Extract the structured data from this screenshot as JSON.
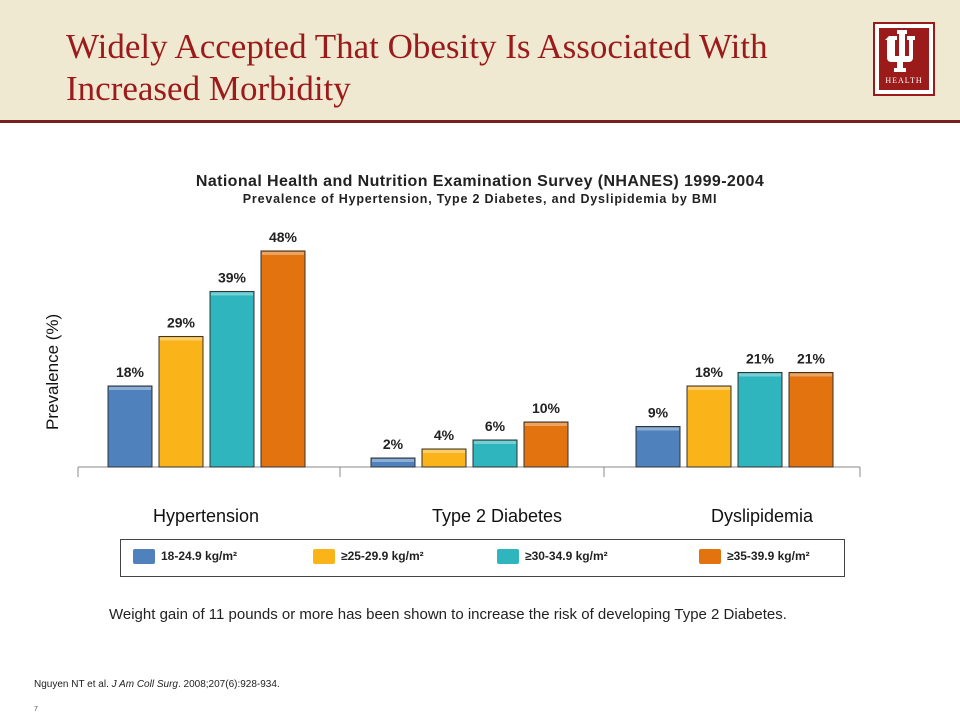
{
  "slide": {
    "title": "Widely Accepted That Obesity Is Associated With Increased Morbidity",
    "logo_text": "HEALTH",
    "note": "Weight gain of 11 pounds or more has been shown to increase the risk of developing Type 2 Diabetes.",
    "citation_authors": "Nguyen NT et al. ",
    "citation_journal": "J Am Coll Surg",
    "citation_rest": ". 2008;207(6):928-934.",
    "page_number": "7"
  },
  "chart_data": {
    "type": "bar",
    "title": "National Health and Nutrition Examination Survey (NHANES) 1999-2004",
    "subtitle": "Prevalence of Hypertension, Type 2 Diabetes, and Dyslipidemia by BMI",
    "ylabel": "Prevalence (%)",
    "categories": [
      "Hypertension",
      "Type 2 Diabetes",
      "Dyslipidemia"
    ],
    "ylim": [
      0,
      50
    ],
    "legend_position": "bottom",
    "series": [
      {
        "name": "18-24.9 kg/m²",
        "color": "#4f81bd",
        "values": [
          18,
          2,
          9
        ],
        "labels": [
          "18%",
          "2%",
          "9%"
        ]
      },
      {
        "name": "≥25-29.9 kg/m²",
        "color": "#fbb31a",
        "values": [
          29,
          4,
          18
        ],
        "labels": [
          "29%",
          "4%",
          "18%"
        ]
      },
      {
        "name": "≥30-34.9 kg/m²",
        "color": "#2fb5bd",
        "values": [
          39,
          6,
          21
        ],
        "labels": [
          "39%",
          "6%",
          "21%"
        ]
      },
      {
        "name": "≥35-39.9 kg/m²",
        "color": "#e2730f",
        "values": [
          48,
          10,
          21
        ],
        "labels": [
          "48%",
          "10%",
          "21%"
        ]
      }
    ]
  }
}
